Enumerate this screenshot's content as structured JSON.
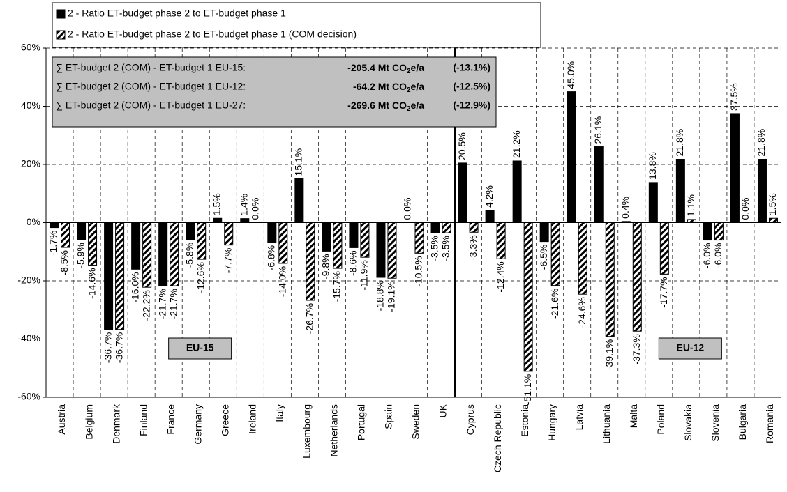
{
  "chart_data": {
    "type": "bar",
    "categories": [
      "Austria",
      "Belgium",
      "Denmark",
      "Finland",
      "France",
      "Germany",
      "Greece",
      "Ireland",
      "Italy",
      "Luxembourg",
      "Netherlands",
      "Portugal",
      "Spain",
      "Sweden",
      "UK",
      "Cyprus",
      "Czech Republic",
      "Estonia",
      "Hungary",
      "Latvia",
      "Lithuania",
      "Malta",
      "Poland",
      "Slovakia",
      "Slovenia",
      "Bulgaria",
      "Romania"
    ],
    "series": [
      {
        "name": "2 - Ratio ET-budget phase 2 to ET-budget phase 1",
        "color": "#000000",
        "pattern": "solid",
        "values": [
          -1.7,
          -5.9,
          -36.7,
          -16.0,
          -21.7,
          -5.8,
          1.5,
          1.4,
          -6.8,
          15.1,
          -9.8,
          -8.6,
          -18.8,
          0.0,
          -3.5,
          20.5,
          4.2,
          21.2,
          -6.5,
          45.0,
          26.1,
          0.4,
          13.8,
          21.8,
          -6.0,
          37.5,
          21.8
        ],
        "value_labels": [
          "-1.7%",
          "-5.9%",
          "-36.7%",
          "-16.0%",
          "-21.7%",
          "-5.8%",
          "1.5%",
          "1.4%",
          "-6.8%",
          "15.1%",
          "-9.8%",
          "-8.6%",
          "-18.8%",
          "0.0%",
          "-3.5%",
          "20.5%",
          "4.2%",
          "21.2%",
          "-6.5%",
          "45.0%",
          "26.1%",
          "0.4%",
          "13.8%",
          "21.8%",
          "-6.0%",
          "37.5%",
          "21.8%"
        ]
      },
      {
        "name": "2 - Ratio ET-budget phase 2 to ET-budget phase 1 (COM decision)",
        "color": "#000000",
        "pattern": "hatch",
        "values": [
          -8.5,
          -14.6,
          -36.7,
          -22.2,
          -21.7,
          -12.6,
          -7.7,
          0.0,
          -14.0,
          -26.7,
          -15.7,
          -11.9,
          -19.1,
          -10.5,
          -3.5,
          -3.3,
          -12.4,
          -51.1,
          -21.6,
          -24.6,
          -39.1,
          -37.3,
          -17.7,
          1.1,
          -6.0,
          0.0,
          1.5
        ],
        "value_labels": [
          "-8.5%",
          "-14.6%",
          "-36.7%",
          "-22.2%",
          "-21.7%",
          "-12.6%",
          "-7.7%",
          "0.0%",
          "-14.0%",
          "-26.7%",
          "-15.7%",
          "-11.9%",
          "-19.1%",
          "-10.5%",
          "-3.5%",
          "-3.3%",
          "-12.4%",
          "-51.1%",
          "-21.6%",
          "-24.6%",
          "-39.1%",
          "-37.3%",
          "-17.7%",
          "1.1%",
          "-6.0%",
          "0.0%",
          "1.5%"
        ]
      }
    ],
    "ylim": [
      -60,
      60
    ],
    "yticks": [
      {
        "value": -60,
        "label": "-60%"
      },
      {
        "value": -40,
        "label": "-40%"
      },
      {
        "value": -20,
        "label": "-20%"
      },
      {
        "value": 0,
        "label": "0%"
      },
      {
        "value": 20,
        "label": "20%"
      },
      {
        "value": 40,
        "label": "40%"
      },
      {
        "value": 60,
        "label": "60%"
      }
    ],
    "grid": true,
    "legend": "top-left",
    "groups": [
      {
        "label": "EU-15",
        "count": 15
      },
      {
        "label": "EU-12",
        "count": 12
      }
    ],
    "annotations": [
      {
        "text": "∑ ET-budget 2 (COM) - ET-budget 1 EU-15:",
        "amount": "-205.4 Mt CO",
        "sub": "2",
        "unit": "e/a",
        "share": "(-13.1%)"
      },
      {
        "text": "∑ ET-budget 2 (COM) - ET-budget 1 EU-12:",
        "amount": "-64.2 Mt CO",
        "sub": "2",
        "unit": "e/a",
        "share": "(-12.5%)"
      },
      {
        "text": "∑ ET-budget 2 (COM) - ET-budget 1 EU-27:",
        "amount": "-269.6 Mt CO",
        "sub": "2",
        "unit": "e/a",
        "share": "(-12.9%)"
      }
    ]
  }
}
